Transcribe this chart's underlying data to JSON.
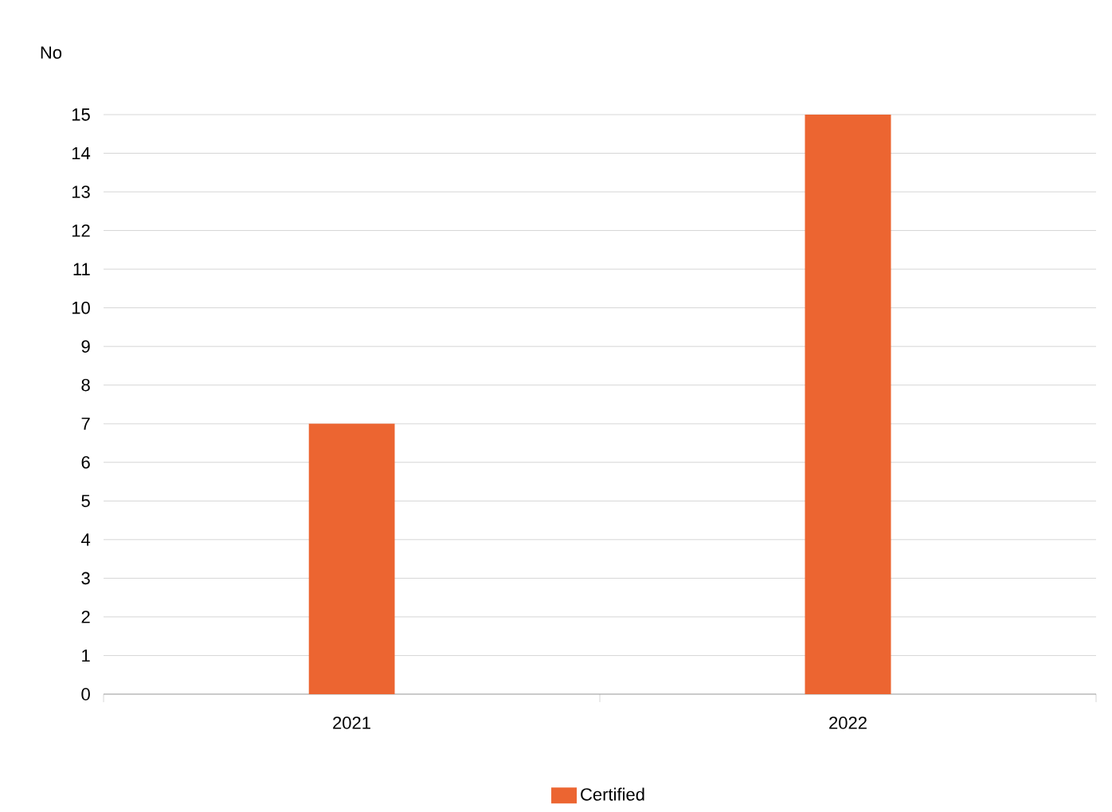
{
  "chart_data": {
    "type": "bar",
    "ylabel": "No",
    "categories": [
      "2021",
      "2022"
    ],
    "series": [
      {
        "name": "Certified",
        "color": "#ec6531",
        "values": [
          7,
          15
        ]
      }
    ],
    "ylim": [
      0,
      15
    ],
    "yticks": [
      0,
      1,
      2,
      3,
      4,
      5,
      6,
      7,
      8,
      9,
      10,
      11,
      12,
      13,
      14,
      15
    ],
    "grid": "y",
    "legend": "bottom"
  }
}
